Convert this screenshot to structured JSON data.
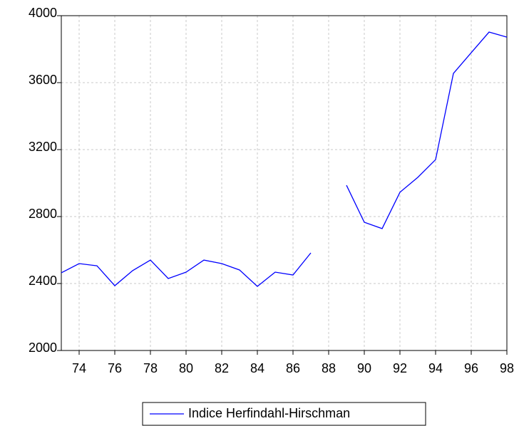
{
  "chart_data": {
    "type": "line",
    "x": [
      73,
      74,
      75,
      76,
      77,
      78,
      79,
      80,
      81,
      82,
      83,
      84,
      85,
      86,
      87,
      88,
      89,
      90,
      91,
      92,
      93,
      94,
      95,
      96,
      97,
      98
    ],
    "series": [
      {
        "name": "Indice Herfindahl-Hirschman",
        "color": "#0000ff",
        "values": [
          2464,
          2519,
          2506,
          2387,
          2477,
          2540,
          2430,
          2468,
          2540,
          2519,
          2481,
          2383,
          2468,
          2451,
          2583,
          null,
          2987,
          2766,
          2728,
          2945,
          3034,
          3140,
          3655,
          3779,
          3902,
          3872
        ]
      }
    ],
    "xlim": [
      73,
      98
    ],
    "xticks": [
      74,
      76,
      78,
      80,
      82,
      84,
      86,
      88,
      90,
      92,
      94,
      96,
      98
    ],
    "ylim": [
      2000,
      4000
    ],
    "yticks": [
      2000,
      2400,
      2800,
      3200,
      3600,
      4000
    ],
    "grid": true,
    "legend": "bottom"
  }
}
